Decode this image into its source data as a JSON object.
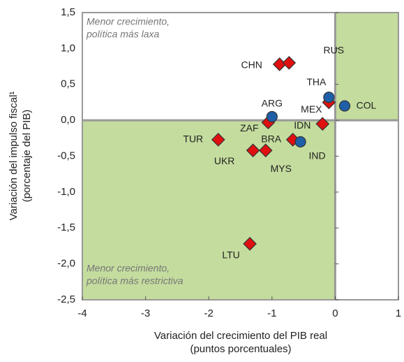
{
  "chart_data": {
    "type": "scatter",
    "annotations": [
      [
        "Menor crecimiento,",
        "política más laxa"
      ],
      [
        "Menor crecimiento,",
        "política más restrictiva"
      ]
    ],
    "xlabel": [
      "Variación del crecimiento del PIB real",
      "(puntos porcentuales)"
    ],
    "ylabel": [
      "Variación del impulso fiscal¹",
      "(porcentaje del PIB)"
    ],
    "xlim": [
      -4,
      1
    ],
    "ylim": [
      -2.5,
      1.5
    ],
    "xticks": [
      -4,
      -3,
      -2,
      -1,
      0,
      1
    ],
    "yticks": [
      {
        "value": -2.5,
        "label": "-2,5"
      },
      {
        "value": -2,
        "label": "-2,0"
      },
      {
        "value": -1.5,
        "label": "-1,5"
      },
      {
        "value": -1,
        "label": "-1,0"
      },
      {
        "value": -0.5,
        "label": "-0,5"
      },
      {
        "value": 0,
        "label": "0,0"
      },
      {
        "value": 0.5,
        "label": "0,5"
      },
      {
        "value": 1,
        "label": "1,0"
      },
      {
        "value": 1.5,
        "label": "1,5"
      }
    ],
    "shade_color": "#c4dc9e",
    "series": [
      {
        "marker": "diamond",
        "color": "#e01010",
        "labels": [
          "CHN",
          "RUS",
          "MEX",
          "IDN",
          "ZAF",
          "BRA",
          "TUR",
          "UKR",
          "MYS",
          "LTU"
        ],
        "x": [
          -0.88,
          -0.73,
          -0.1,
          -0.2,
          -1.06,
          -0.67,
          -1.85,
          -1.3,
          -1.1,
          -1.35
        ],
        "values": [
          0.78,
          0.8,
          0.25,
          -0.05,
          -0.03,
          -0.27,
          -0.27,
          -0.42,
          -0.42,
          -1.72
        ]
      },
      {
        "marker": "circle",
        "color": "#1f5fa8",
        "labels": [
          "ARG",
          "THA",
          "COL",
          "IND"
        ],
        "x": [
          -1.0,
          -0.1,
          0.15,
          -0.55
        ],
        "values": [
          0.05,
          0.32,
          0.2,
          -0.3
        ]
      }
    ]
  }
}
